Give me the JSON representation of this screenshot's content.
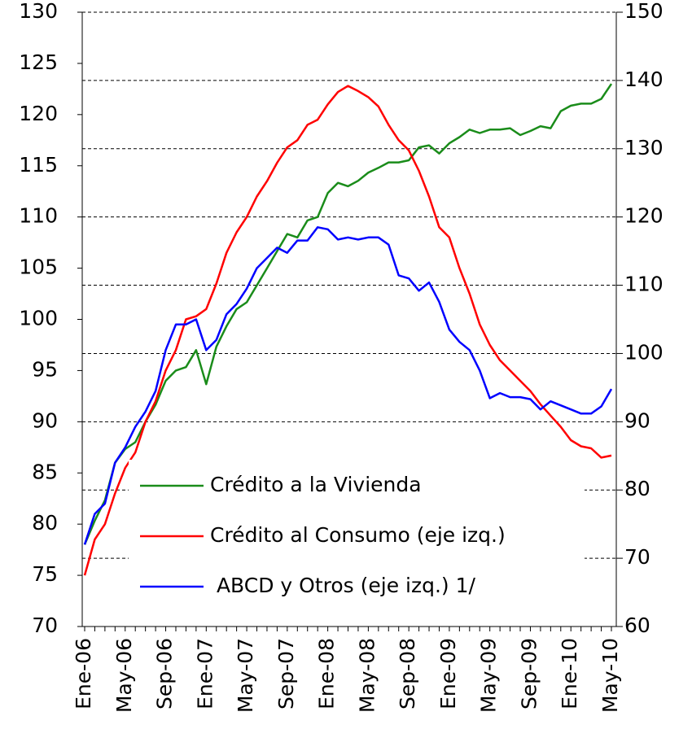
{
  "chart_data": {
    "type": "line",
    "categories": [
      "Ene-06",
      null,
      null,
      null,
      "May-06",
      null,
      null,
      null,
      "Sep-06",
      null,
      null,
      null,
      "Ene-07",
      null,
      null,
      null,
      "May-07",
      null,
      null,
      null,
      "Sep-07",
      null,
      null,
      null,
      "Ene-08",
      null,
      null,
      null,
      "May-08",
      null,
      null,
      null,
      "Sep-08",
      null,
      null,
      null,
      "Ene-09",
      null,
      null,
      null,
      "May-09",
      null,
      null,
      null,
      "Sep-09",
      null,
      null,
      null,
      "Ene-10",
      null,
      null,
      null,
      "May-10"
    ],
    "series": [
      {
        "name": "Crédito a la Vivienda",
        "color": "#1a8c1a",
        "axis": "y2",
        "values": [
          72,
          75.5,
          78.5,
          84,
          86,
          87,
          90,
          92.5,
          96,
          97.5,
          98,
          100.5,
          95.5,
          101,
          104,
          106.5,
          107.5,
          110,
          112.5,
          115,
          117.5,
          117,
          119.5,
          120,
          123.5,
          125,
          124.5,
          125.3,
          126.5,
          127.2,
          128,
          128,
          128.3,
          130.2,
          130.5,
          129.3,
          130.8,
          131.7,
          132.8,
          132.3,
          132.8,
          132.8,
          133,
          132,
          132.6,
          133.3,
          133,
          135.5,
          136.3,
          136.6,
          136.6,
          137.3,
          139.5
        ]
      },
      {
        "name": "Crédito al Consumo (eje izq.)",
        "color": "#ff0000",
        "axis": "y",
        "values": [
          75,
          78.5,
          80,
          83,
          85.5,
          87,
          90,
          92,
          95,
          97,
          100,
          100.3,
          101,
          103.5,
          106.5,
          108.5,
          110,
          112,
          113.5,
          115.3,
          116.8,
          117.5,
          119,
          119.5,
          121,
          122.2,
          122.8,
          122.3,
          121.7,
          120.8,
          119,
          117.5,
          116.5,
          114.5,
          112,
          109,
          108,
          105,
          102.5,
          99.5,
          97.5,
          96,
          95,
          94,
          93,
          91.7,
          90.6,
          89.5,
          88.2,
          87.6,
          87.4,
          86.5,
          86.7
        ]
      },
      {
        "name": " ABCD y Otros (eje izq.) 1/",
        "color": "#0000ff",
        "axis": "y",
        "values": [
          78,
          81,
          82,
          86,
          87.5,
          89.5,
          91,
          93,
          97,
          99.5,
          99.5,
          100,
          97,
          98,
          100.5,
          101.5,
          103,
          105,
          106,
          107,
          106.5,
          107.7,
          107.7,
          109,
          108.8,
          107.8,
          108,
          107.8,
          108,
          108,
          107.3,
          104.3,
          104,
          102.8,
          103.6,
          101.7,
          99,
          97.8,
          97,
          95,
          92.3,
          92.8,
          92.4,
          92.4,
          92.2,
          91.2,
          92,
          91.6,
          91.2,
          90.8,
          90.8,
          91.5,
          93.2
        ]
      }
    ],
    "ylim": [
      70,
      130
    ],
    "yticks": [
      70,
      75,
      80,
      85,
      90,
      95,
      100,
      105,
      110,
      115,
      120,
      125,
      130
    ],
    "y2lim": [
      60,
      150
    ],
    "y2ticks": [
      60,
      70,
      80,
      90,
      100,
      110,
      120,
      130,
      140,
      150
    ],
    "grid": true
  }
}
